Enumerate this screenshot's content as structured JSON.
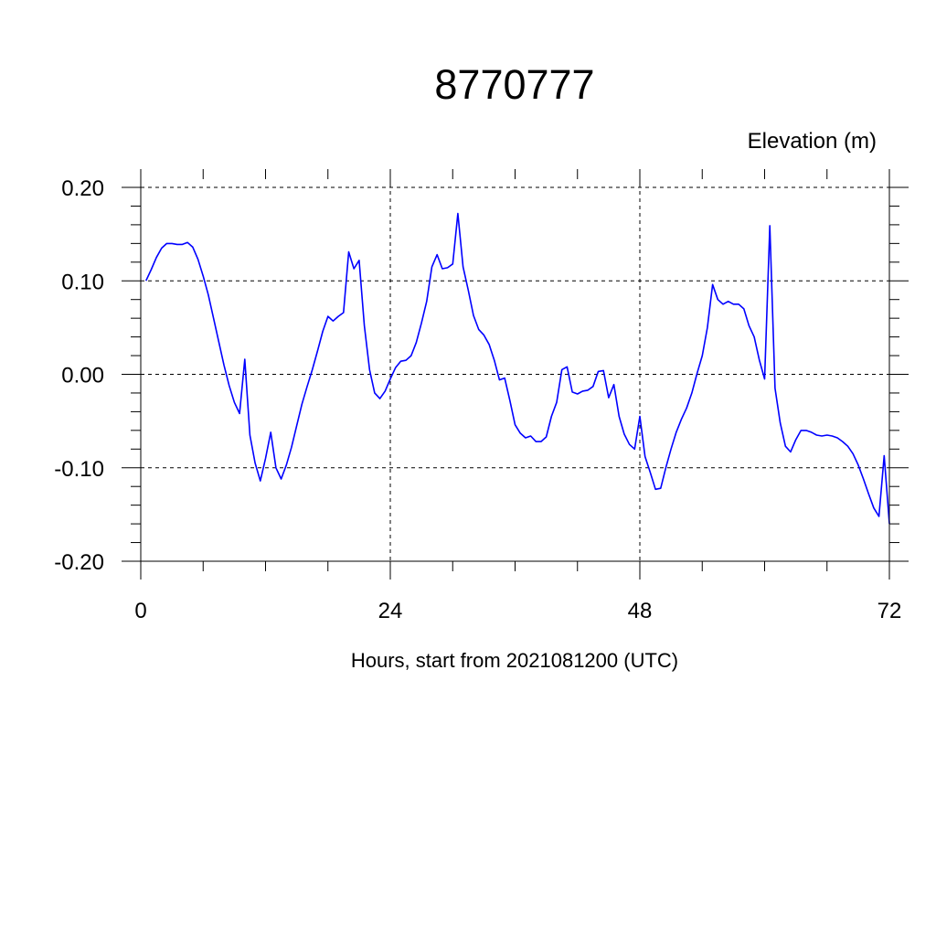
{
  "chart_data": {
    "type": "line",
    "title": "8770777",
    "ylabel": "Elevation (m)",
    "xlabel": "Hours, start from 2021081200 (UTC)",
    "xlim": [
      0,
      72
    ],
    "ylim": [
      -0.2,
      0.2
    ],
    "x_ticks": [
      0,
      24,
      48,
      72
    ],
    "x_tick_labels": [
      "0",
      "24",
      "48",
      "72"
    ],
    "y_ticks": [
      -0.2,
      -0.1,
      0,
      0.1,
      0.2
    ],
    "y_tick_labels": [
      "-0.20",
      "-0.10",
      "0.00",
      "0.10",
      "0.20"
    ],
    "grid": true,
    "grid_style": "dashed",
    "line_color": "#0000ff",
    "series": [
      {
        "x": [
          0.5,
          1.0,
          1.5,
          2.0,
          2.5,
          3.0,
          3.5,
          4.0,
          4.5,
          5.0,
          5.5,
          6.0,
          6.5,
          7.0,
          7.5,
          8.0,
          8.5,
          9.0,
          9.5,
          10.0,
          10.5,
          11.0,
          11.5,
          12.0,
          12.5,
          13.0,
          13.5,
          14.0,
          14.5,
          15.0,
          15.5,
          16.0,
          16.5,
          17.0,
          17.5,
          18.0,
          18.5,
          19.0,
          19.5,
          20.0,
          20.5,
          21.0,
          21.5,
          22.0,
          22.5,
          23.0,
          23.5,
          24.0,
          24.5,
          25.0,
          25.5,
          26.0,
          26.5,
          27.0,
          27.5,
          28.0,
          28.5,
          29.0,
          29.5,
          30.0,
          30.5,
          31.0,
          31.5,
          32.0,
          32.5,
          33.0,
          33.5,
          34.0,
          34.5,
          35.0,
          35.5,
          36.0,
          36.5,
          37.0,
          37.5,
          38.0,
          38.5,
          39.0,
          39.5,
          40.0,
          40.5,
          41.0,
          41.5,
          42.0,
          42.5,
          43.0,
          43.5,
          44.0,
          44.5,
          45.0,
          45.5,
          46.0,
          46.5,
          47.0,
          47.5,
          48.0,
          48.5,
          49.0,
          49.5,
          50.0,
          50.5,
          51.0,
          51.5,
          52.0,
          52.5,
          53.0,
          53.5,
          54.0,
          54.5,
          55.0,
          55.5,
          56.0,
          56.5,
          57.0,
          57.5,
          58.0,
          58.5,
          59.0,
          59.5,
          60.0,
          60.5,
          61.0,
          61.5,
          62.0,
          62.5,
          63.0,
          63.5,
          64.0,
          64.5,
          65.0,
          65.5,
          66.0,
          66.5,
          67.0,
          67.5,
          68.0,
          68.5,
          69.0,
          69.5,
          70.0,
          70.5,
          71.0,
          71.5,
          72.0
        ],
        "y": [
          0.1,
          0.112,
          0.125,
          0.135,
          0.14,
          0.14,
          0.139,
          0.139,
          0.141,
          0.136,
          0.123,
          0.105,
          0.085,
          0.06,
          0.035,
          0.01,
          -0.012,
          -0.03,
          -0.042,
          0.016,
          -0.065,
          -0.095,
          -0.114,
          -0.09,
          -0.062,
          -0.1,
          -0.112,
          -0.097,
          -0.078,
          -0.055,
          -0.032,
          -0.013,
          0.005,
          0.025,
          0.046,
          0.062,
          0.057,
          0.062,
          0.066,
          0.131,
          0.113,
          0.122,
          0.052,
          0.005,
          -0.02,
          -0.026,
          -0.018,
          -0.005,
          0.007,
          0.014,
          0.015,
          0.02,
          0.034,
          0.055,
          0.078,
          0.115,
          0.128,
          0.113,
          0.114,
          0.118,
          0.172,
          0.115,
          0.09,
          0.063,
          0.048,
          0.042,
          0.032,
          0.015,
          -0.006,
          -0.004,
          -0.028,
          -0.054,
          -0.063,
          -0.068,
          -0.066,
          -0.072,
          -0.072,
          -0.067,
          -0.045,
          -0.03,
          0.005,
          0.008,
          -0.019,
          -0.021,
          -0.018,
          -0.017,
          -0.013,
          0.003,
          0.004,
          -0.025,
          -0.011,
          -0.045,
          -0.064,
          -0.075,
          -0.08,
          -0.045,
          -0.088,
          -0.105,
          -0.123,
          -0.122,
          -0.1,
          -0.08,
          -0.062,
          -0.048,
          -0.036,
          -0.02,
          0.001,
          0.02,
          0.05,
          0.096,
          0.08,
          0.075,
          0.078,
          0.075,
          0.075,
          0.07,
          0.052,
          0.04,
          0.015,
          -0.005,
          0.159,
          -0.015,
          -0.052,
          -0.077,
          -0.083,
          -0.07,
          -0.06,
          -0.06,
          -0.062,
          -0.065,
          -0.066,
          -0.065,
          -0.066,
          -0.068,
          -0.072,
          -0.077,
          -0.085,
          -0.097,
          -0.112,
          -0.128,
          -0.143,
          -0.152,
          -0.087,
          -0.16
        ]
      }
    ]
  }
}
